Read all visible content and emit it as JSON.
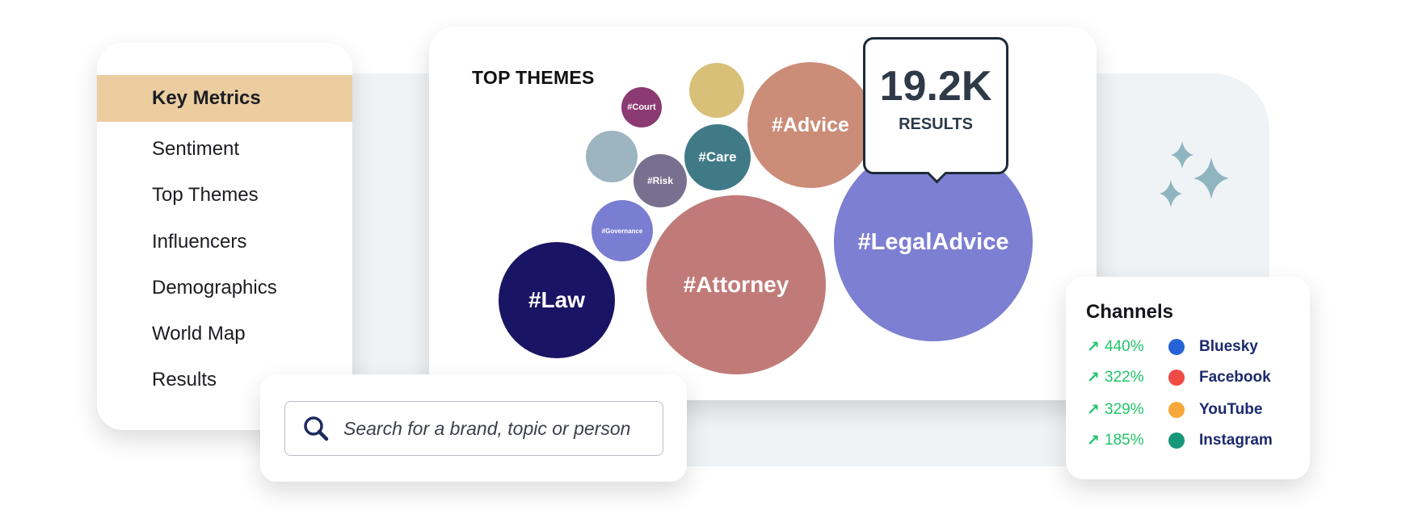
{
  "sidebar": {
    "items": [
      {
        "label": "Key Metrics",
        "active": true
      },
      {
        "label": "Sentiment"
      },
      {
        "label": "Top Themes"
      },
      {
        "label": "Influencers"
      },
      {
        "label": "Demographics"
      },
      {
        "label": "World Map"
      },
      {
        "label": "Results"
      }
    ],
    "active_color": "#ebcda0"
  },
  "themes": {
    "title": "TOP THEMES",
    "bubbles": [
      {
        "label": "#Court",
        "color": "#8b3a72"
      },
      {
        "label": "",
        "color": "#d9c079"
      },
      {
        "label": "#Advice",
        "color": "#cb8c78"
      },
      {
        "label": "",
        "color": "#9db4c1"
      },
      {
        "label": "#Care",
        "color": "#407a87"
      },
      {
        "label": "#Risk",
        "color": "#77708f"
      },
      {
        "label": "#Governance",
        "color": "#7a7ed2"
      },
      {
        "label": "#Law",
        "color": "#1a1464"
      },
      {
        "label": "#Attorney",
        "color": "#c07b78"
      },
      {
        "label": "#LegalAdvice",
        "color": "#7d7fd3"
      }
    ],
    "tooltip": {
      "value": "19.2K",
      "label": "RESULTS"
    }
  },
  "channels": {
    "title": "Channels",
    "rows": [
      {
        "change": "440%",
        "name": "Bluesky",
        "color": "#2563d6",
        "icon": "arrow-up-right-icon"
      },
      {
        "change": "322%",
        "name": "Facebook",
        "color": "#f04a45",
        "icon": "arrow-up-right-icon"
      },
      {
        "change": "329%",
        "name": "YouTube",
        "color": "#f6a83a",
        "icon": "arrow-up-right-icon"
      },
      {
        "change": "185%",
        "name": "Instagram",
        "color": "#16977a",
        "icon": "arrow-up-right-icon"
      }
    ],
    "arrow_glyph": "↗"
  },
  "search": {
    "placeholder": "Search for a brand, topic or person",
    "icon": "search-icon"
  }
}
